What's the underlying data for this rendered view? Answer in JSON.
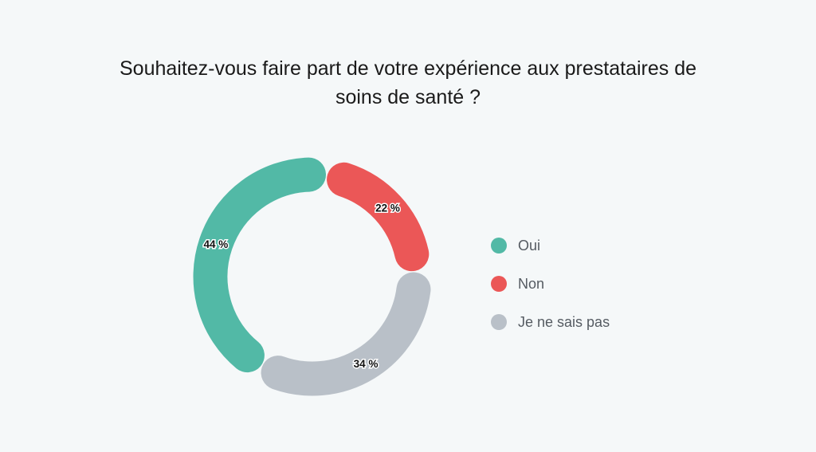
{
  "chart_data": {
    "type": "pie",
    "variant": "donut",
    "title_lines": [
      "Souhaitez-vous faire part de votre expérience aux prestataires de",
      "soins de santé ?"
    ],
    "categories": [
      "Non",
      "Je ne sais pas",
      "Oui"
    ],
    "values": [
      22,
      34,
      44
    ],
    "labels": [
      "22 %",
      "34 %",
      "44 %"
    ],
    "colors": [
      "#eb5757",
      "#b9c0c8",
      "#52b9a6"
    ],
    "legend": {
      "placement": "right",
      "entries": [
        "Oui",
        "Non",
        "Je ne sais pas"
      ],
      "colors": [
        "#52b9a6",
        "#eb5757",
        "#b9c0c8"
      ]
    }
  }
}
